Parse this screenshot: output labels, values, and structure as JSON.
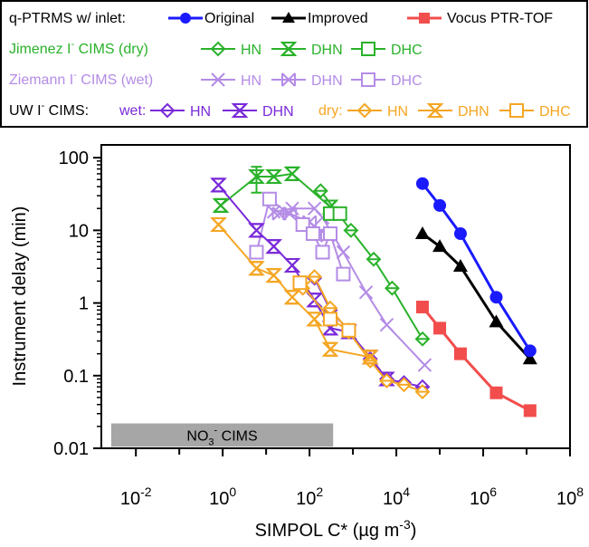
{
  "chart_data": {
    "type": "scatter",
    "xlabel": "SIMPOL C* (µg m",
    "xlabel_sup": "-3",
    "xlabel_end": ")",
    "ylabel": "Instrument delay (min)",
    "x_scale": "log",
    "y_scale": "log",
    "xlim": [
      0.0016,
      100000000
    ],
    "ylim": [
      0.01,
      150
    ],
    "x_ticks": [
      0.01,
      1,
      100,
      10000,
      1000000,
      100000000
    ],
    "x_tick_labels": [
      [
        "10",
        "-2"
      ],
      [
        "10",
        "0"
      ],
      [
        "10",
        "2"
      ],
      [
        "10",
        "4"
      ],
      [
        "10",
        "6"
      ],
      [
        "10",
        "8"
      ]
    ],
    "y_ticks": [
      0.01,
      0.1,
      1,
      10,
      100
    ],
    "y_tick_labels": [
      "0.01",
      "0.1",
      "1",
      "10",
      "100"
    ],
    "grid": false,
    "legend_placement": "top, outside the plot",
    "annotation": {
      "label": "NO",
      "label_sub": "3",
      "label_sup": "-",
      "label_end": " CIMS",
      "x_range": [
        0.0027,
        350
      ],
      "y_range": [
        0.0105,
        0.022
      ],
      "color": "#a6a6a6"
    },
    "legend": {
      "row1_prefix": "q-PTRMS w/ inlet:",
      "jimenez_prefix": "Jimenez I",
      "jimenez_suffix": " CIMS (dry)",
      "ziemann_prefix": "Ziemann I",
      "ziemann_suffix": " CIMS (wet)",
      "uw_prefix": "UW I",
      "uw_suffix": " CIMS:",
      "uw_wet": "wet:",
      "uw_dry": "dry:",
      "superscript": "-"
    },
    "series": [
      {
        "name": "Original",
        "group": "q-PTRMS",
        "color": "#1a1aff",
        "marker": "circle",
        "x": [
          40000,
          100000,
          300000,
          2000000,
          12000000
        ],
        "y": [
          44,
          22,
          9,
          1.2,
          0.22
        ]
      },
      {
        "name": "Improved",
        "group": "q-PTRMS",
        "color": "#000000",
        "marker": "triangle",
        "x": [
          40000,
          100000,
          300000,
          2000000,
          12000000
        ],
        "y": [
          9,
          6,
          3.2,
          0.55,
          0.17
        ]
      },
      {
        "name": "Vocus PTR-TOF",
        "group": "Vocus",
        "color": "#f24d4d",
        "marker": "square",
        "x": [
          40000,
          100000,
          300000,
          2000000,
          12000000
        ],
        "y": [
          0.88,
          0.45,
          0.2,
          0.058,
          0.033
        ]
      },
      {
        "name": "HN",
        "group": "Jimenez",
        "color": "#2ab22a",
        "marker": "diamond",
        "x": [
          180,
          900,
          3000,
          8000,
          40000
        ],
        "y": [
          35,
          10,
          4,
          1.6,
          0.32
        ]
      },
      {
        "name": "DHN",
        "group": "Jimenez",
        "color": "#2ab22a",
        "marker": "hourglass",
        "x": [
          0.9,
          6,
          15,
          40,
          300
        ],
        "y": [
          22,
          55,
          55,
          60,
          21
        ]
      },
      {
        "name": "DHC",
        "group": "Jimenez",
        "color": "#2ab22a",
        "marker": "open-square",
        "x": [
          300,
          500
        ],
        "y": [
          17,
          17
        ]
      },
      {
        "name": "HN",
        "group": "Ziemann",
        "color": "#b48ce6",
        "marker": "x",
        "x": [
          15,
          40,
          130,
          200,
          600,
          2000,
          6000,
          45000
        ],
        "y": [
          18,
          20,
          20,
          15,
          5,
          1.4,
          0.5,
          0.14
        ]
      },
      {
        "name": "DHN",
        "group": "Ziemann",
        "color": "#b48ce6",
        "marker": "bowtie",
        "x": [
          20,
          35,
          100,
          260
        ],
        "y": [
          17,
          17,
          13,
          8.5
        ]
      },
      {
        "name": "DHC",
        "group": "Ziemann",
        "color": "#b48ce6",
        "marker": "open-square",
        "x": [
          6,
          12,
          70,
          120,
          200,
          300,
          600
        ],
        "y": [
          5,
          27,
          12,
          9,
          5,
          9,
          2.5
        ]
      },
      {
        "name": "HN",
        "group": "UW wet",
        "color": "#7a2ad9",
        "marker": "diamond",
        "x": [
          130,
          300,
          800,
          2500,
          6000,
          15000,
          40000
        ],
        "y": [
          2.2,
          0.8,
          0.42,
          0.17,
          0.09,
          0.08,
          0.07
        ]
      },
      {
        "name": "DHN",
        "group": "UW wet",
        "color": "#7a2ad9",
        "marker": "hourglass",
        "x": [
          0.8,
          6,
          15,
          40,
          130,
          300,
          800,
          2500,
          6000
        ],
        "y": [
          42,
          10,
          6,
          3.3,
          1.1,
          0.45,
          0.4,
          0.18,
          0.09
        ]
      },
      {
        "name": "HN",
        "group": "UW dry",
        "color": "#f5a623",
        "marker": "diamond",
        "x": [
          70,
          130,
          300,
          800,
          2500,
          6000,
          15000,
          40000
        ],
        "y": [
          1.6,
          2.3,
          0.85,
          0.4,
          0.16,
          0.085,
          0.075,
          0.06
        ]
      },
      {
        "name": "DHN",
        "group": "UW dry",
        "color": "#f5a623",
        "marker": "hourglass",
        "x": [
          0.8,
          6,
          15,
          40,
          130,
          300,
          2500
        ],
        "y": [
          12,
          3,
          2.4,
          1.2,
          0.6,
          0.23,
          0.18
        ]
      },
      {
        "name": "DHC",
        "group": "UW dry",
        "color": "#f5a623",
        "marker": "open-square",
        "x": [
          60,
          300,
          800
        ],
        "y": [
          1.9,
          0.6,
          0.42
        ]
      }
    ]
  }
}
